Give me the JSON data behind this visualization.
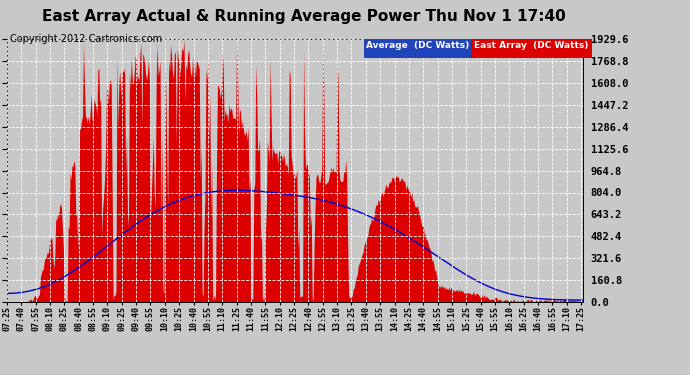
{
  "title": "East Array Actual & Running Average Power Thu Nov 1 17:40",
  "copyright": "Copyright 2012 Cartronics.com",
  "yticks": [
    0.0,
    160.8,
    321.6,
    482.4,
    643.2,
    804.0,
    964.8,
    1125.6,
    1286.4,
    1447.2,
    1608.0,
    1768.8,
    1929.6
  ],
  "ymax": 1929.6,
  "ymin": 0.0,
  "bg_color": "#c8c8c8",
  "plot_bg_color": "#c8c8c8",
  "grid_color": "#ffffff",
  "east_array_color": "#dd0000",
  "average_color": "#0000cc",
  "title_fontsize": 11,
  "copyright_fontsize": 7
}
